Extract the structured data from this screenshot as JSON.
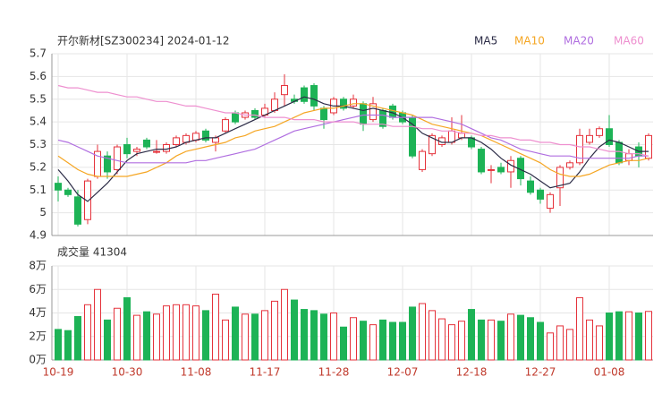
{
  "chart_data": {
    "type": "candlestick",
    "title": "开尔新材[SZ300234] 2024-01-12",
    "categories": [
      "10-19",
      null,
      null,
      null,
      null,
      null,
      null,
      "10-30",
      null,
      null,
      null,
      null,
      null,
      null,
      "11-08",
      null,
      null,
      null,
      null,
      null,
      null,
      "11-17",
      null,
      null,
      null,
      null,
      null,
      null,
      "11-28",
      null,
      null,
      null,
      null,
      null,
      null,
      "12-07",
      null,
      null,
      null,
      null,
      null,
      null,
      "12-18",
      null,
      null,
      null,
      null,
      null,
      null,
      "12-27",
      null,
      null,
      null,
      null,
      null,
      null,
      "01-08",
      null,
      null,
      null,
      null
    ],
    "open": [
      5.13,
      5.1,
      5.07,
      4.97,
      5.16,
      5.25,
      5.19,
      5.3,
      5.27,
      5.32,
      5.27,
      5.27,
      5.3,
      5.31,
      5.32,
      5.36,
      5.31,
      5.36,
      5.44,
      5.42,
      5.45,
      5.43,
      5.45,
      5.52,
      5.5,
      5.55,
      5.56,
      5.46,
      5.44,
      5.5,
      5.47,
      5.48,
      5.41,
      5.45,
      5.47,
      5.44,
      5.42,
      5.19,
      5.26,
      5.3,
      5.31,
      5.33,
      5.33,
      5.28,
      5.19,
      5.2,
      5.18,
      5.24,
      5.14,
      5.1,
      5.02,
      5.11,
      5.2,
      5.22,
      5.31,
      5.34,
      5.37,
      5.31,
      5.23,
      5.29,
      5.24
    ],
    "high": [
      5.16,
      5.11,
      5.1,
      5.15,
      5.3,
      5.27,
      5.3,
      5.33,
      5.29,
      5.33,
      5.32,
      5.31,
      5.34,
      5.35,
      5.36,
      5.37,
      5.34,
      5.42,
      5.45,
      5.45,
      5.46,
      5.48,
      5.53,
      5.61,
      5.52,
      5.56,
      5.57,
      5.47,
      5.51,
      5.51,
      5.52,
      5.49,
      5.51,
      5.46,
      5.48,
      5.45,
      5.43,
      5.28,
      5.35,
      5.34,
      5.42,
      5.43,
      5.34,
      5.29,
      5.21,
      5.22,
      5.25,
      5.25,
      5.16,
      5.11,
      5.09,
      5.21,
      5.23,
      5.37,
      5.37,
      5.38,
      5.43,
      5.32,
      5.28,
      5.31,
      5.35
    ],
    "low": [
      5.05,
      5.07,
      4.94,
      4.95,
      5.15,
      5.15,
      5.17,
      5.24,
      5.25,
      5.28,
      5.26,
      5.26,
      5.29,
      5.3,
      5.31,
      5.31,
      5.27,
      5.35,
      5.39,
      5.41,
      5.41,
      5.42,
      5.44,
      5.47,
      5.48,
      5.48,
      5.45,
      5.37,
      5.43,
      5.45,
      5.46,
      5.36,
      5.4,
      5.37,
      5.41,
      5.39,
      5.24,
      5.18,
      5.25,
      5.29,
      5.3,
      5.32,
      5.28,
      5.17,
      5.13,
      5.17,
      5.11,
      5.12,
      5.08,
      5.04,
      5.0,
      5.03,
      5.19,
      5.21,
      5.3,
      5.33,
      5.29,
      5.21,
      5.21,
      5.2,
      5.23
    ],
    "close": [
      5.1,
      5.08,
      4.95,
      5.14,
      5.27,
      5.18,
      5.29,
      5.26,
      5.28,
      5.29,
      5.27,
      5.3,
      5.33,
      5.34,
      5.35,
      5.32,
      5.33,
      5.41,
      5.4,
      5.44,
      5.42,
      5.46,
      5.5,
      5.56,
      5.49,
      5.49,
      5.47,
      5.41,
      5.5,
      5.46,
      5.5,
      5.39,
      5.48,
      5.38,
      5.42,
      5.4,
      5.25,
      5.27,
      5.34,
      5.33,
      5.36,
      5.35,
      5.29,
      5.18,
      5.19,
      5.18,
      5.23,
      5.15,
      5.09,
      5.06,
      5.08,
      5.2,
      5.22,
      5.34,
      5.34,
      5.37,
      5.3,
      5.22,
      5.26,
      5.25,
      5.34
    ],
    "up_color": "#e5323b",
    "down_color": "#1db356",
    "ylim": [
      4.9,
      5.7
    ],
    "yticks": [
      5.7,
      5.6,
      5.5,
      5.4,
      5.3,
      5.2,
      5.1,
      5,
      4.9
    ],
    "grid": true,
    "ma": [
      {
        "name": "MA5",
        "color": "#2b2b46",
        "values": [
          5.19,
          5.14,
          5.08,
          5.05,
          5.09,
          5.13,
          5.18,
          5.23,
          5.26,
          5.27,
          5.28,
          5.28,
          5.29,
          5.31,
          5.32,
          5.33,
          5.33,
          5.35,
          5.37,
          5.39,
          5.41,
          5.43,
          5.45,
          5.47,
          5.49,
          5.51,
          5.5,
          5.48,
          5.47,
          5.47,
          5.46,
          5.45,
          5.46,
          5.45,
          5.44,
          5.42,
          5.39,
          5.35,
          5.33,
          5.31,
          5.31,
          5.33,
          5.33,
          5.31,
          5.28,
          5.24,
          5.21,
          5.19,
          5.17,
          5.14,
          5.11,
          5.12,
          5.13,
          5.18,
          5.24,
          5.29,
          5.32,
          5.31,
          5.29,
          5.27,
          5.27
        ]
      },
      {
        "name": "MA10",
        "color": "#f5a623",
        "values": [
          5.25,
          5.22,
          5.19,
          5.17,
          5.16,
          5.16,
          5.16,
          5.16,
          5.17,
          5.18,
          5.2,
          5.22,
          5.25,
          5.27,
          5.28,
          5.29,
          5.3,
          5.31,
          5.33,
          5.34,
          5.36,
          5.37,
          5.38,
          5.4,
          5.42,
          5.44,
          5.45,
          5.46,
          5.46,
          5.47,
          5.48,
          5.48,
          5.47,
          5.46,
          5.45,
          5.44,
          5.43,
          5.41,
          5.39,
          5.38,
          5.37,
          5.36,
          5.35,
          5.34,
          5.32,
          5.3,
          5.28,
          5.26,
          5.24,
          5.22,
          5.19,
          5.17,
          5.16,
          5.16,
          5.17,
          5.19,
          5.21,
          5.22,
          5.23,
          5.23,
          5.24
        ]
      },
      {
        "name": "MA20",
        "color": "#b06ee0",
        "values": [
          5.32,
          5.31,
          5.29,
          5.27,
          5.25,
          5.24,
          5.23,
          5.22,
          5.22,
          5.22,
          5.22,
          5.22,
          5.22,
          5.22,
          5.23,
          5.23,
          5.24,
          5.25,
          5.26,
          5.27,
          5.28,
          5.3,
          5.32,
          5.34,
          5.36,
          5.37,
          5.38,
          5.39,
          5.4,
          5.41,
          5.42,
          5.43,
          5.43,
          5.43,
          5.42,
          5.42,
          5.42,
          5.42,
          5.42,
          5.41,
          5.4,
          5.39,
          5.37,
          5.35,
          5.33,
          5.32,
          5.3,
          5.28,
          5.27,
          5.26,
          5.25,
          5.25,
          5.25,
          5.24,
          5.24,
          5.24,
          5.24,
          5.24,
          5.24,
          5.25,
          5.25
        ]
      },
      {
        "name": "MA60",
        "color": "#ee8fcf",
        "values": [
          5.56,
          5.55,
          5.55,
          5.54,
          5.53,
          5.53,
          5.52,
          5.51,
          5.51,
          5.5,
          5.49,
          5.49,
          5.48,
          5.47,
          5.47,
          5.46,
          5.45,
          5.44,
          5.44,
          5.43,
          5.43,
          5.42,
          5.42,
          5.42,
          5.41,
          5.41,
          5.41,
          5.4,
          5.4,
          5.4,
          5.4,
          5.39,
          5.39,
          5.39,
          5.38,
          5.38,
          5.38,
          5.37,
          5.37,
          5.36,
          5.36,
          5.35,
          5.35,
          5.34,
          5.34,
          5.33,
          5.33,
          5.32,
          5.32,
          5.31,
          5.31,
          5.3,
          5.3,
          5.29,
          5.29,
          5.28,
          5.27,
          5.27,
          5.26,
          5.26,
          5.25
        ]
      }
    ],
    "volume": {
      "title": "成交量 41304",
      "values": [
        26000,
        25000,
        37000,
        47000,
        60000,
        34000,
        44000,
        53000,
        38000,
        41000,
        39000,
        46000,
        47000,
        47000,
        46000,
        42000,
        56000,
        34000,
        45000,
        39000,
        39000,
        42000,
        50000,
        60000,
        51000,
        43000,
        42000,
        39000,
        40000,
        28000,
        36000,
        33000,
        30000,
        34000,
        32000,
        32000,
        45000,
        48000,
        42000,
        35000,
        30000,
        33000,
        43000,
        34000,
        34000,
        33000,
        39000,
        38000,
        36000,
        32000,
        23000,
        29000,
        26000,
        53000,
        34000,
        29000,
        40000,
        41000,
        41000,
        40000,
        41304
      ],
      "ylim": [
        0,
        80000
      ],
      "yticks": [
        {
          "value": 80000,
          "label": "8万"
        },
        {
          "value": 60000,
          "label": "6万"
        },
        {
          "value": 40000,
          "label": "4万"
        },
        {
          "value": 20000,
          "label": "2万"
        },
        {
          "value": 0,
          "label": "0万"
        }
      ]
    }
  }
}
